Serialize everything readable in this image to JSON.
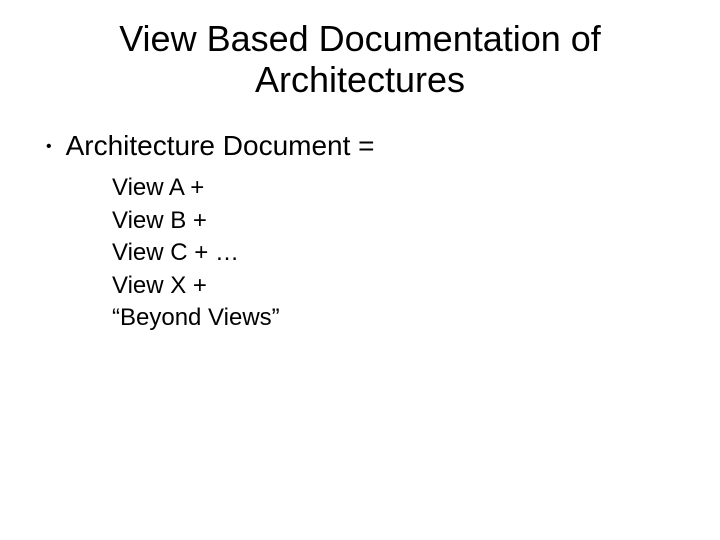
{
  "slide": {
    "title": "View Based Documentation of Architectures",
    "bullet": {
      "text": "Architecture Document ="
    },
    "sub_items": [
      "View A +",
      "View B +",
      "View C + …",
      "View X +",
      "“Beyond Views”"
    ],
    "colors": {
      "background": "#ffffff",
      "text": "#000000"
    },
    "typography": {
      "title_fontsize": 36,
      "bullet_fontsize": 28,
      "sub_fontsize": 24,
      "font_family": "Arial"
    }
  }
}
